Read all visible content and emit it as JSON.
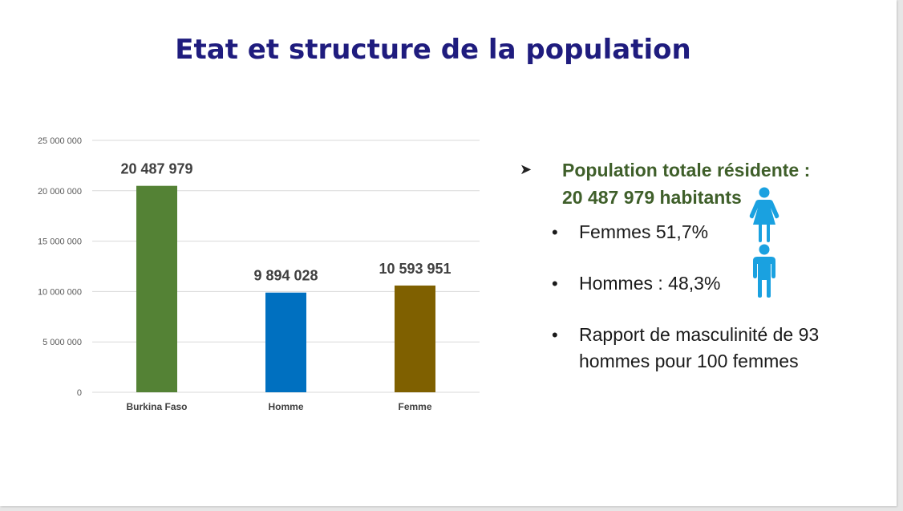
{
  "title": "Etat et structure de la population",
  "chart_data": {
    "type": "bar",
    "categories": [
      "Burkina Faso",
      "Homme",
      "Femme"
    ],
    "values": [
      20487979,
      9894028,
      10593951
    ],
    "data_labels": [
      "20 487 979",
      "9 894 028",
      "10 593 951"
    ],
    "colors": [
      "#548235",
      "#0070c0",
      "#7f6000"
    ],
    "ylim": [
      0,
      25000000
    ],
    "yticks": [
      0,
      5000000,
      10000000,
      15000000,
      20000000,
      25000000
    ],
    "ytick_labels": [
      "0",
      "5 000 000",
      "10 000 000",
      "15 000 000",
      "20 000 000",
      "25 000 000"
    ],
    "title": "",
    "xlabel": "",
    "ylabel": "",
    "grid": true,
    "legend": "none"
  },
  "summary": {
    "bullet_icon": "arrow-bullet-icon",
    "headline_line1": "Population totale résidente :",
    "headline_line2": "20 487 979 habitants",
    "items": [
      {
        "text": "Femmes 51,7%",
        "icon": "woman-icon"
      },
      {
        "text": "Hommes : 48,3%",
        "icon": "man-icon"
      },
      {
        "text": "Rapport de masculinité de 93 hommes pour 100 femmes"
      }
    ],
    "icon_color": "#1aa1e0"
  }
}
